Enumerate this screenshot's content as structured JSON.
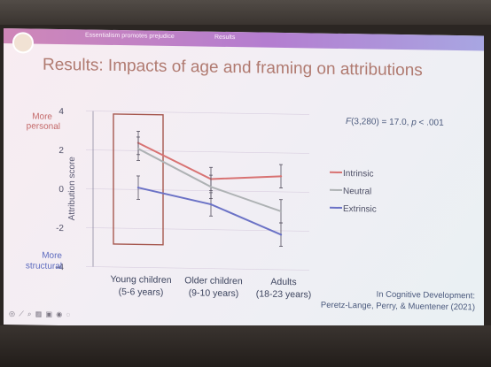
{
  "slide": {
    "nav": [
      "Essentialism promotes prejudice",
      "Results"
    ],
    "title": "Results: Impacts of age and framing on attributions",
    "stat_prefix": "F",
    "stat_main": "(3,280) = 17.0, ",
    "stat_p": "p",
    "stat_suffix": " < .001",
    "citation_line1": "In Cognitive Development:",
    "citation_line2": "Peretz-Lange, Perry, & Muentener (2021)",
    "toolbar_glyphs": "◎ ⟋ ⌕ ▦ ▣ ◉ ◌"
  },
  "chart_data": {
    "type": "line",
    "title": "",
    "xlabel": "",
    "ylabel": "Attribution score",
    "ylim": [
      -4,
      4
    ],
    "yticks": [
      "4",
      "2",
      "0",
      "-2",
      "-4"
    ],
    "categories": [
      "Young children\n(5-6 years)",
      "Older children\n(9-10 years)",
      "Adults\n(18-23 years)"
    ],
    "y_top_annotation": [
      "More",
      "personal"
    ],
    "y_bottom_annotation": [
      "More",
      "structural"
    ],
    "highlight_category": "Young children\n(5-6 years)",
    "legend_position": "right",
    "series": [
      {
        "name": "Intrinsic",
        "values": [
          2.4,
          0.6,
          0.8
        ],
        "error": [
          0.6,
          0.6,
          0.6
        ],
        "color": "#d87272"
      },
      {
        "name": "Neutral",
        "values": [
          2.1,
          0.2,
          -1.0
        ],
        "error": [
          0.6,
          0.6,
          0.6
        ],
        "color": "#aeb2b4"
      },
      {
        "name": "Extrinsic",
        "values": [
          0.1,
          -0.7,
          -2.2
        ],
        "error": [
          0.6,
          0.6,
          0.6
        ],
        "color": "#6b72c6"
      }
    ]
  }
}
